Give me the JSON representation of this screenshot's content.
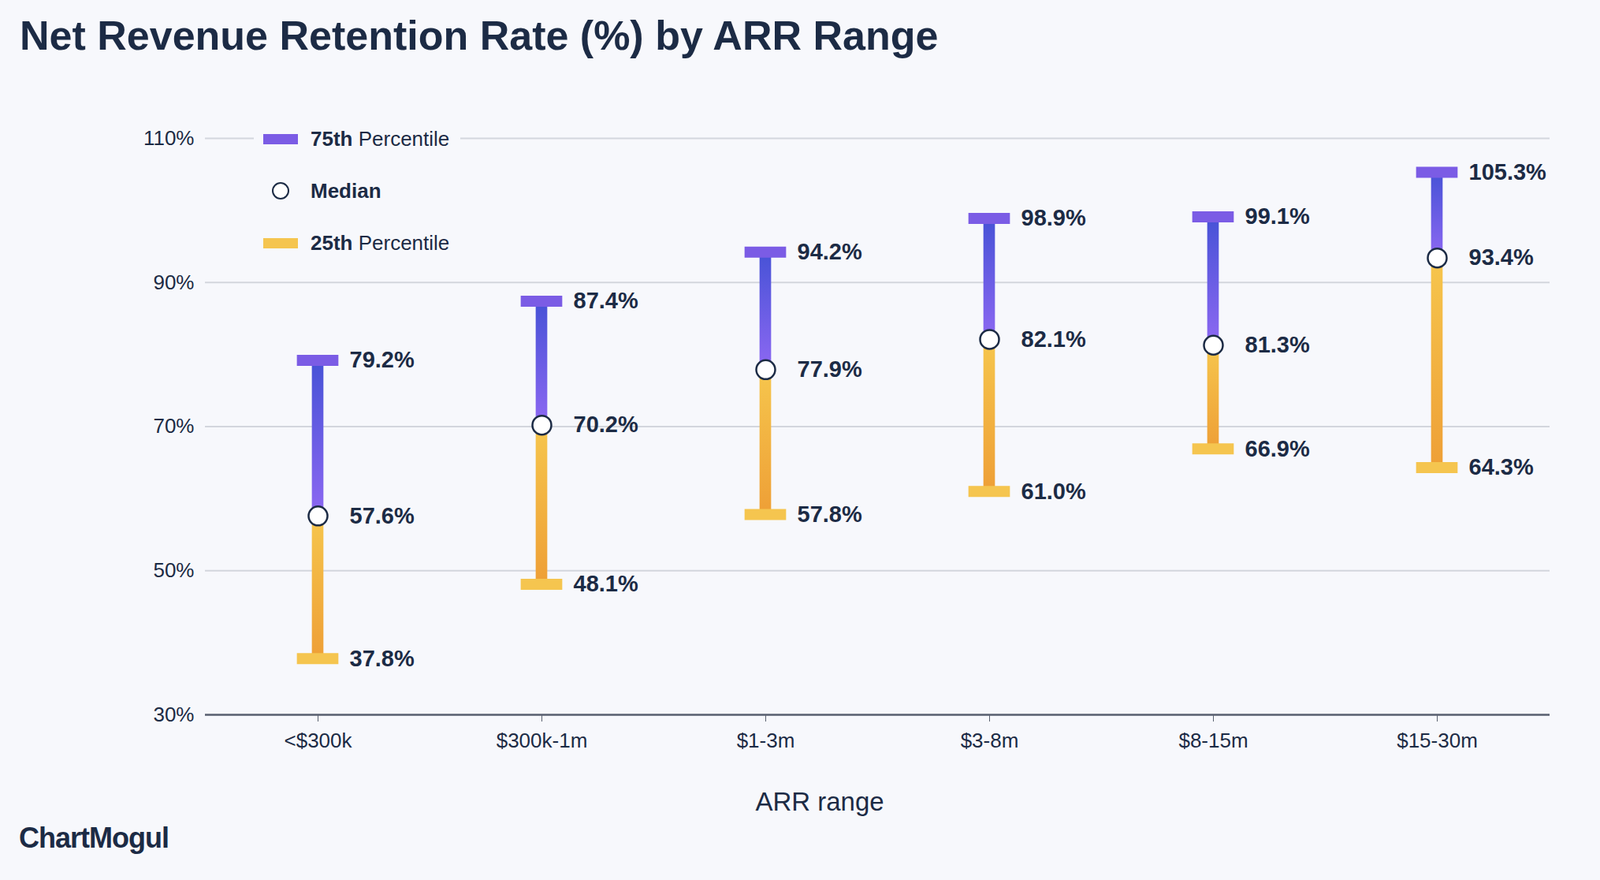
{
  "chart_data": {
    "type": "range",
    "title": "Net Revenue Retention Rate (%) by ARR Range",
    "x_label": "ARR range",
    "source": "ChartMogul",
    "categories": [
      "<$300k",
      "$300k-1m",
      "$1-3m",
      "$3-8m",
      "$8-15m",
      "$15-30m"
    ],
    "series": [
      {
        "name": "75th Percentile",
        "color": "#7b5ce5",
        "values": [
          79.2,
          87.4,
          94.2,
          98.9,
          99.1,
          105.3
        ],
        "value_labels": [
          "79.2%",
          "87.4%",
          "94.2%",
          "98.9%",
          "99.1%",
          "105.3%"
        ]
      },
      {
        "name": "Median",
        "color": "#ffffff",
        "marker": "circle",
        "values": [
          57.6,
          70.2,
          77.9,
          82.1,
          81.3,
          93.4
        ],
        "value_labels": [
          "57.6%",
          "70.2%",
          "77.9%",
          "82.1%",
          "81.3%",
          "93.4%"
        ]
      },
      {
        "name": "25th Percentile",
        "color": "#f5c54f",
        "values": [
          37.8,
          48.1,
          57.8,
          61.0,
          66.9,
          64.3
        ],
        "value_labels": [
          "37.8%",
          "48.1%",
          "57.8%",
          "61.0%",
          "66.9%",
          "64.3%"
        ]
      }
    ],
    "ylim": [
      30,
      110
    ],
    "yticks": [
      {
        "value": 30,
        "label": "30%"
      },
      {
        "value": 50,
        "label": "50%"
      },
      {
        "value": 70,
        "label": "70%"
      },
      {
        "value": 90,
        "label": "90%"
      },
      {
        "value": 110,
        "label": "110%"
      }
    ],
    "grid": true,
    "legend": "top-left",
    "data_labels": true
  }
}
